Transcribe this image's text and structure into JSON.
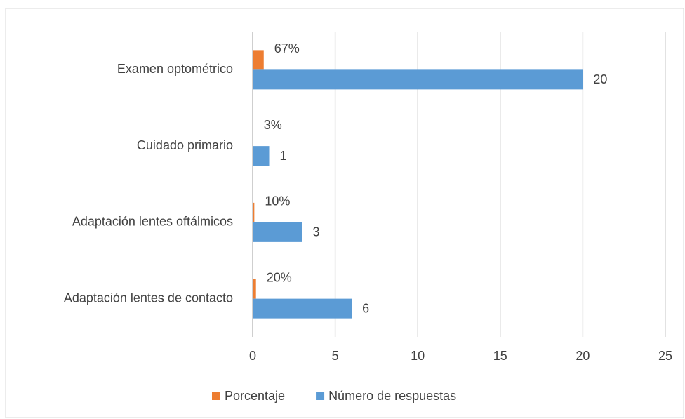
{
  "chart_data": {
    "type": "bar",
    "orientation": "horizontal",
    "categories": [
      "Examen optométrico",
      "Cuidado primario",
      "Adaptación lentes oftálmicos",
      "Adaptación lentes de contacto"
    ],
    "series": [
      {
        "name": "Porcentaje",
        "color": "#ed7d31",
        "values": [
          0.67,
          0.03,
          0.1,
          0.2
        ],
        "value_labels": [
          "67%",
          "3%",
          "10%",
          "20%"
        ]
      },
      {
        "name": "Número de respuestas",
        "color": "#5b9bd5",
        "values": [
          20,
          1,
          3,
          6
        ]
      }
    ],
    "xlim": [
      0,
      25
    ],
    "xticks": [
      0,
      5,
      10,
      15,
      20,
      25
    ],
    "grid": true,
    "legend": "bottom"
  }
}
